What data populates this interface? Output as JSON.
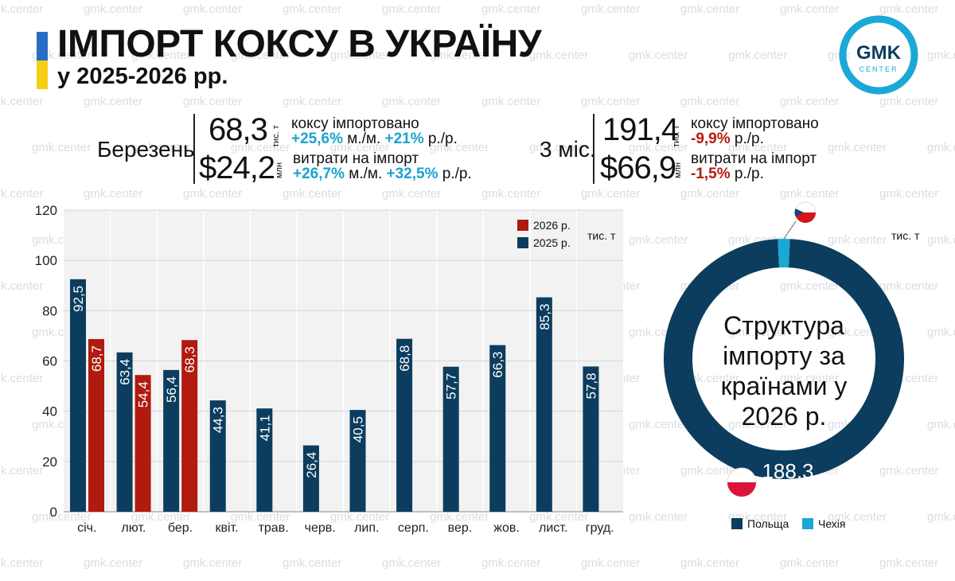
{
  "watermark": "gmk.center",
  "header": {
    "title": "ІМПОРТ КОКСУ В УКРАЇНУ",
    "subtitle": "у 2025-2026 рр."
  },
  "logo": {
    "line1": "GMK",
    "line2": "CENTER"
  },
  "stats": {
    "march": {
      "label": "Березень",
      "volume": "68,3",
      "volume_unit": "тис. т",
      "volume_desc": "коксу імпортовано",
      "volume_mm": "+25,6%",
      "mm_suffix": " м./м. ",
      "volume_yy": "+21%",
      "yy_suffix": " р./р.",
      "cost": "$24,2",
      "cost_unit": "млн",
      "cost_desc": "витрати на імпорт",
      "cost_mm": "+26,7%",
      "cost_yy": "+32,5%"
    },
    "three_months": {
      "label": "3 міс.",
      "volume": "191,4",
      "volume_unit": "тис. т",
      "volume_desc": "коксу імпортовано",
      "volume_yy": "-9,9%",
      "yy_suffix": " р./р.",
      "cost": "$66,9",
      "cost_unit": "млн",
      "cost_desc": "витрати на імпорт",
      "cost_yy": "-1,5%"
    }
  },
  "colors": {
    "y2025": "#0c3d5e",
    "y2026": "#b01a0f",
    "poland": "#0c3d5e",
    "czech": "#1aa8d6",
    "grid": "#e8e8e8"
  },
  "chart_data": [
    {
      "type": "bar",
      "categories": [
        "січ.",
        "лют.",
        "бер.",
        "квіт.",
        "трав.",
        "черв.",
        "лип.",
        "серп.",
        "вер.",
        "жов.",
        "лист.",
        "груд."
      ],
      "series": [
        {
          "name": "2025 р.",
          "values": [
            92.5,
            63.4,
            56.4,
            44.3,
            41.1,
            26.4,
            40.5,
            68.8,
            57.7,
            66.3,
            85.3,
            57.8
          ],
          "labels": [
            "92,5",
            "63,4",
            "56,4",
            "44,3",
            "41,1",
            "26,4",
            "40,5",
            "68,8",
            "57,7",
            "66,3",
            "85,3",
            "57,8"
          ]
        },
        {
          "name": "2026 р.",
          "values": [
            68.7,
            54.4,
            68.3,
            null,
            null,
            null,
            null,
            null,
            null,
            null,
            null,
            null
          ],
          "labels": [
            "68,7",
            "54,4",
            "68,3",
            "",
            "",
            "",
            "",
            "",
            "",
            "",
            "",
            ""
          ]
        }
      ],
      "unit_label": "тис. т",
      "yticks": [
        0,
        20,
        40,
        60,
        80,
        100,
        120
      ],
      "ylim": [
        0,
        120
      ],
      "grid": true,
      "legend_position": "top-right"
    },
    {
      "type": "pie",
      "title": "Структура імпорту за країнами у 2026 р.",
      "unit_label": "тис. т",
      "slices": [
        {
          "name": "Польща",
          "value": 188.3,
          "label": "188,3"
        },
        {
          "name": "Чехія",
          "value": 3.1,
          "label": ""
        }
      ],
      "legend_position": "bottom"
    }
  ]
}
